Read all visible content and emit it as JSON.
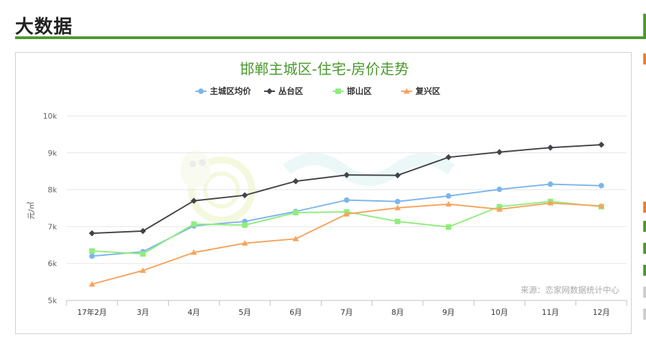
{
  "section": {
    "title": "大数据"
  },
  "chart_data": {
    "type": "line",
    "title": "邯郸主城区-住宅-房价走势",
    "ylabel": "元/㎡",
    "xlabel": "",
    "categories": [
      "17年2月",
      "3月",
      "4月",
      "5月",
      "6月",
      "7月",
      "8月",
      "9月",
      "10月",
      "11月",
      "12月"
    ],
    "ylim": [
      5000,
      10000
    ],
    "yticks": [
      5000,
      6000,
      7000,
      8000,
      9000,
      10000
    ],
    "ytick_labels": [
      "5k",
      "6k",
      "7k",
      "8k",
      "9k",
      "10k"
    ],
    "grid": true,
    "legend_position": "top-center",
    "source_note": "来源：恋家网数据统计中心",
    "series": [
      {
        "name": "主城区均价",
        "color": "#7cb5ec",
        "marker": "circle",
        "values": [
          6200,
          6320,
          7020,
          7140,
          7410,
          7720,
          7680,
          7830,
          8010,
          8150,
          8110
        ]
      },
      {
        "name": "丛台区",
        "color": "#434348",
        "marker": "diamond",
        "values": [
          6820,
          6880,
          7700,
          7850,
          8230,
          8400,
          8390,
          8880,
          9020,
          9140,
          9220
        ]
      },
      {
        "name": "邯山区",
        "color": "#90ed7d",
        "marker": "square",
        "values": [
          6340,
          6260,
          7070,
          7040,
          7380,
          7400,
          7140,
          6990,
          7540,
          7680,
          7540
        ]
      },
      {
        "name": "复兴区",
        "color": "#f7a35c",
        "marker": "triangle",
        "values": [
          5440,
          5810,
          6300,
          6550,
          6670,
          7340,
          7510,
          7610,
          7470,
          7640,
          7560
        ]
      }
    ]
  }
}
